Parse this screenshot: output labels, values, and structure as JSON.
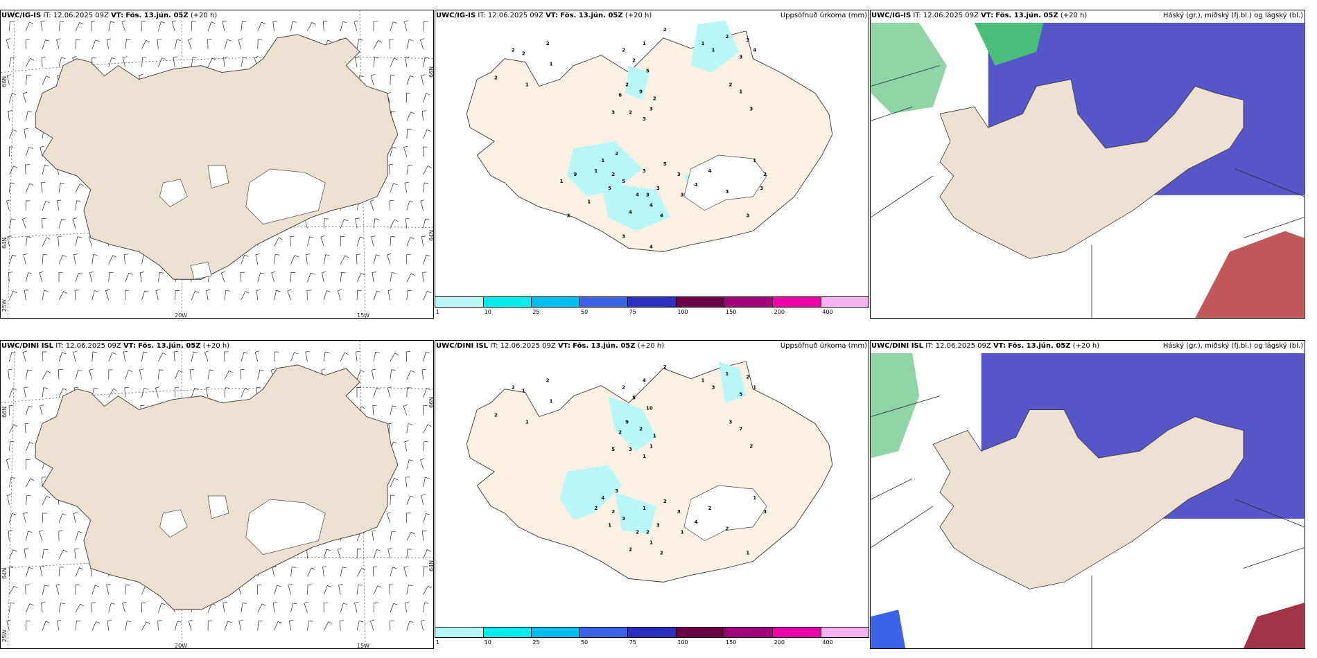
{
  "rows": [
    {
      "wind": {
        "model": "UWC/IG-IS",
        "it": "IT: 12.06.2025 09Z",
        "vt_label": "VT:",
        "vt": "Fös. 13.jún. 05Z",
        "lead": "(+20 h)"
      },
      "precip": {
        "model": "UWC/IG-IS",
        "it": "IT: 12.06.2025 09Z",
        "vt_label": "VT:",
        "vt": "Fös. 13.jún. 05Z",
        "lead": "(+20 h)",
        "title_right": "Uppsöfnuð úrkoma (mm)"
      },
      "cloud": {
        "model": "UWC/IG-IS",
        "it": "IT: 12.06.2025 09Z",
        "vt_label": "VT:",
        "vt": "Fös. 13.jún. 05Z",
        "lead": "(+20 h)",
        "title_right": "Háský (gr.), miðský (fj.bl.) og lágský (bl.)"
      },
      "axis_labels": {
        "lat_66_left": "66N",
        "lat_66_right": "66N",
        "lat_64_left": "64N",
        "lat_64_right": "64N",
        "lon_25": "25W",
        "lon_20": "20W",
        "lon_15": "15W"
      },
      "precip_labels": [
        "2",
        "2",
        "2",
        "1",
        "2",
        "1",
        "2",
        "1",
        "2",
        "5",
        "2",
        "9",
        "6",
        "3",
        "2",
        "3",
        "2",
        "3",
        "2",
        "1",
        "1",
        "2",
        "3",
        "4",
        "3",
        "2",
        "1",
        "3",
        "2",
        "1",
        "1",
        "2",
        "5",
        "5",
        "4",
        "4",
        "4",
        "3",
        "3",
        "5",
        "3",
        "4",
        "3",
        "3",
        "4",
        "4",
        "3",
        "3",
        "1",
        "2",
        "3",
        "3",
        "4",
        "9",
        "1",
        "1",
        "3"
      ]
    },
    {
      "wind": {
        "model": "UWC/DINI ISL",
        "it": "IT: 12.06.2025 09Z",
        "vt_label": "VT:",
        "vt": "Fös. 13.jún. 05Z",
        "lead": "(+20 h)"
      },
      "precip": {
        "model": "UWC/DINI ISL",
        "it": "IT: 12.06.2025 09Z",
        "vt_label": "VT:",
        "vt": "Fös. 13.jún. 05Z",
        "lead": "(+20 h)",
        "title_right": "Uppsöfnuð úrkoma (mm)"
      },
      "cloud": {
        "model": "UWC/DINI ISL",
        "it": "IT: 12.06.2025 09Z",
        "vt_label": "VT:",
        "vt": "Fös. 13.jún. 05Z",
        "lead": "(+20 h)",
        "title_right": "Háský (gr.), miðský (fj.bl.) og lágský (bl.)"
      },
      "axis_labels": {
        "lat_66_left": "66N",
        "lat_66_right": "66N",
        "lat_64_left": "64N",
        "lat_64_right": "64N",
        "lon_25": "25W",
        "lon_20": "20W",
        "lon_15": "15W"
      },
      "precip_labels": [
        "2",
        "1",
        "2",
        "1",
        "2",
        "1",
        "2",
        "4",
        "5",
        "10",
        "9",
        "2",
        "2",
        "5",
        "3",
        "1",
        "1",
        "1",
        "2",
        "1",
        "3",
        "1",
        "2",
        "1",
        "5",
        "3",
        "7",
        "2",
        "3",
        "4",
        "2",
        "2",
        "3",
        "1",
        "2",
        "1",
        "2",
        "2",
        "1",
        "2",
        "3",
        "2",
        "3",
        "1",
        "4",
        "2",
        "2",
        "1",
        "1",
        "3"
      ]
    }
  ],
  "colorbar": {
    "ticks": [
      "1",
      "10",
      "25",
      "50",
      "75",
      "100",
      "150",
      "200",
      "400"
    ],
    "colors": [
      "#b9f7f7",
      "#00eeee",
      "#00bfee",
      "#3a63e8",
      "#2c2fbf",
      "#6b0047",
      "#a0007a",
      "#ee00a8",
      "#f5b0f0"
    ]
  },
  "colors": {
    "land": "#ece0d1",
    "land_precip": "#fbf0e4",
    "precip_light": "#b9f7f7",
    "high_cloud_green": "#4bbf7a",
    "mid_cloud_blue": "#3a63e8",
    "low_cloud_purple": "#5855c8",
    "cloud_pink": "#c1585a",
    "glacier": "#ffffff"
  }
}
